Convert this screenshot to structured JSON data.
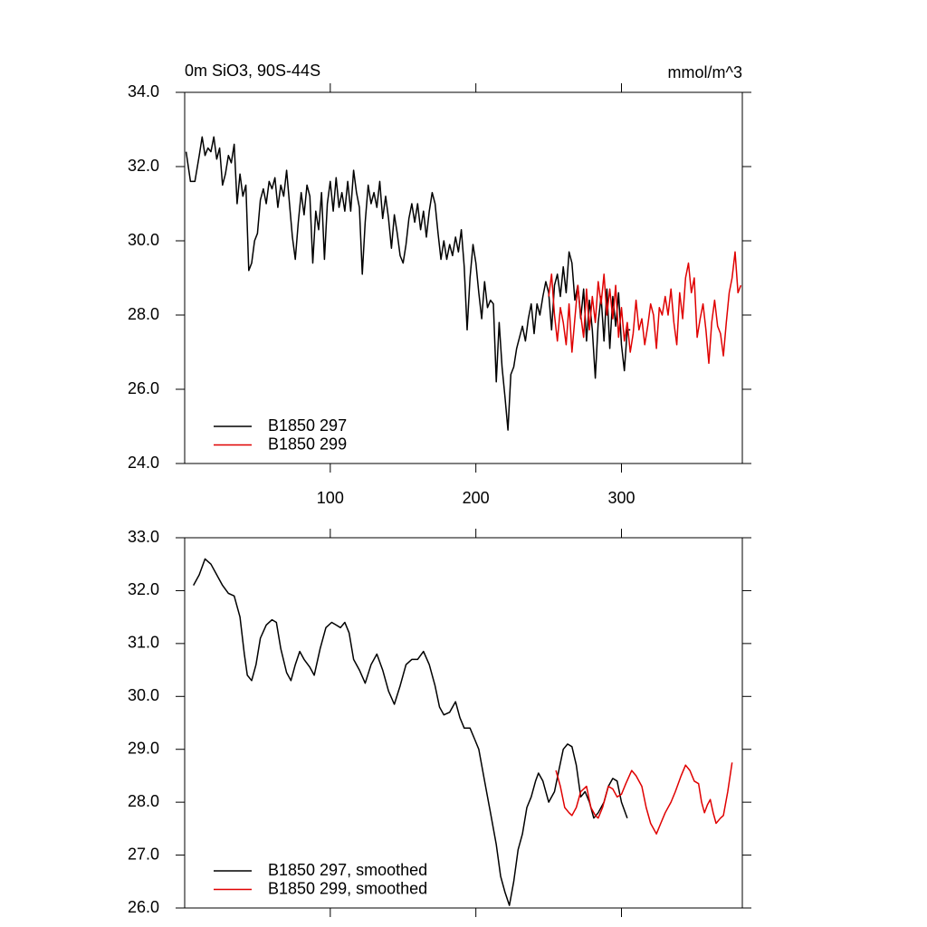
{
  "chart_data": [
    {
      "type": "line",
      "title": "0m SiO3, 90S-44S",
      "units": "mmol/m^3",
      "xlim": [
        0,
        383
      ],
      "xticks": [
        100,
        200,
        300
      ],
      "ylim": [
        24,
        34
      ],
      "yticks": [
        {
          "value": 24,
          "label": "24.0"
        },
        {
          "value": 26,
          "label": "26.0"
        },
        {
          "value": 28,
          "label": "28.0"
        },
        {
          "value": 30,
          "label": "30.0"
        },
        {
          "value": 32,
          "label": "32.0"
        },
        {
          "value": 34,
          "label": "34.0"
        }
      ],
      "legend": "lower left",
      "series": [
        {
          "name": "B1850 297",
          "color": "#000000",
          "x": [
            1,
            4,
            7,
            10,
            12,
            14,
            16,
            18,
            20,
            22,
            24,
            26,
            28,
            30,
            32,
            34,
            36,
            38,
            40,
            42,
            44,
            46,
            48,
            50,
            52,
            54,
            56,
            58,
            60,
            62,
            64,
            66,
            68,
            70,
            72,
            74,
            76,
            78,
            80,
            82,
            84,
            86,
            88,
            90,
            92,
            94,
            96,
            98,
            100,
            102,
            104,
            106,
            108,
            110,
            112,
            114,
            116,
            118,
            120,
            122,
            124,
            126,
            128,
            130,
            132,
            134,
            136,
            138,
            140,
            142,
            144,
            146,
            148,
            150,
            152,
            154,
            156,
            158,
            160,
            162,
            164,
            166,
            168,
            170,
            172,
            174,
            176,
            178,
            180,
            182,
            184,
            186,
            188,
            190,
            192,
            194,
            196,
            198,
            200,
            202,
            204,
            206,
            208,
            210,
            212,
            214,
            216,
            218,
            220,
            222,
            224,
            226,
            228,
            230,
            232,
            234,
            236,
            238,
            240,
            242,
            244,
            246,
            248,
            250,
            252,
            254,
            256,
            258,
            260,
            262,
            264,
            266,
            268,
            270,
            272,
            274,
            276,
            278,
            280,
            282,
            284,
            286,
            288,
            290,
            292,
            294,
            296,
            298,
            300,
            302,
            304,
            306
          ],
          "values": [
            32.4,
            31.6,
            31.6,
            32.3,
            32.8,
            32.3,
            32.5,
            32.4,
            32.8,
            32.2,
            32.5,
            31.5,
            31.8,
            32.3,
            32.1,
            32.6,
            31.0,
            31.8,
            31.2,
            31.5,
            29.2,
            29.4,
            30.0,
            30.2,
            31.1,
            31.4,
            31.0,
            31.6,
            31.4,
            31.7,
            30.9,
            31.5,
            31.2,
            31.9,
            31.0,
            30.1,
            29.5,
            30.5,
            31.3,
            30.7,
            31.5,
            31.2,
            29.4,
            30.8,
            30.3,
            31.3,
            29.5,
            31.0,
            31.6,
            30.8,
            31.7,
            30.9,
            31.3,
            30.8,
            31.6,
            30.8,
            31.9,
            31.3,
            30.9,
            29.1,
            30.5,
            31.5,
            31.0,
            31.3,
            30.9,
            31.6,
            30.6,
            31.2,
            30.6,
            29.8,
            30.7,
            30.2,
            29.6,
            29.4,
            29.9,
            30.6,
            31.0,
            30.5,
            31.0,
            30.3,
            30.8,
            30.1,
            30.8,
            31.3,
            31.0,
            30.2,
            29.5,
            30.0,
            29.5,
            29.9,
            29.6,
            30.1,
            29.7,
            30.3,
            29.3,
            27.6,
            29.0,
            29.9,
            29.4,
            28.6,
            27.9,
            28.9,
            28.2,
            28.4,
            28.3,
            26.2,
            27.8,
            26.6,
            25.8,
            24.9,
            26.4,
            26.6,
            27.1,
            27.4,
            27.7,
            27.3,
            27.9,
            28.3,
            27.5,
            28.3,
            28.0,
            28.5,
            28.9,
            28.6,
            27.6,
            28.8,
            29.1,
            28.5,
            29.3,
            28.6,
            29.7,
            29.4,
            28.4,
            28.8,
            27.9,
            28.7,
            27.3,
            28.4,
            27.6,
            26.3,
            27.8,
            28.5,
            27.3,
            28.7,
            27.1,
            28.5,
            27.7,
            28.6,
            27.2,
            26.5,
            27.6,
            27.6
          ]
        },
        {
          "name": "B1850 299",
          "color": "#e00000",
          "x": [
            250,
            252,
            254,
            256,
            258,
            260,
            262,
            264,
            266,
            268,
            270,
            272,
            274,
            276,
            278,
            280,
            282,
            284,
            286,
            288,
            290,
            292,
            294,
            296,
            298,
            300,
            302,
            304,
            306,
            308,
            310,
            312,
            314,
            316,
            318,
            320,
            322,
            324,
            326,
            328,
            330,
            332,
            334,
            336,
            338,
            340,
            342,
            344,
            346,
            348,
            350,
            352,
            354,
            356,
            358,
            360,
            362,
            364,
            366,
            368,
            370,
            372,
            374,
            376,
            378,
            380,
            382
          ],
          "values": [
            28.5,
            29.1,
            28.0,
            27.3,
            28.2,
            27.8,
            27.2,
            28.3,
            27.0,
            27.9,
            28.8,
            28.0,
            27.4,
            28.7,
            27.6,
            28.5,
            27.8,
            28.9,
            28.3,
            29.1,
            28.0,
            28.7,
            27.9,
            28.8,
            27.4,
            28.2,
            27.3,
            27.8,
            27.0,
            27.5,
            28.4,
            27.6,
            27.9,
            27.2,
            27.7,
            28.3,
            28.0,
            27.1,
            28.2,
            28.0,
            28.5,
            28.0,
            28.7,
            27.8,
            27.2,
            28.6,
            27.9,
            29.0,
            29.4,
            28.6,
            29.0,
            27.4,
            27.9,
            28.3,
            27.6,
            26.7,
            27.8,
            28.4,
            27.7,
            27.5,
            26.9,
            27.8,
            28.6,
            29.0,
            29.7,
            28.6,
            28.8
          ]
        }
      ]
    },
    {
      "type": "line",
      "xlim": [
        0,
        383
      ],
      "xticks": [
        100,
        200,
        300
      ],
      "ylim": [
        26,
        33
      ],
      "yticks": [
        {
          "value": 26,
          "label": "26.0"
        },
        {
          "value": 27,
          "label": "27.0"
        },
        {
          "value": 28,
          "label": "28.0"
        },
        {
          "value": 29,
          "label": "29.0"
        },
        {
          "value": 30,
          "label": "30.0"
        },
        {
          "value": 31,
          "label": "31.0"
        },
        {
          "value": 32,
          "label": "32.0"
        },
        {
          "value": 33,
          "label": "33.0"
        }
      ],
      "legend": "lower left",
      "series": [
        {
          "name": "B1850 297, smoothed",
          "color": "#000000",
          "x": [
            6,
            10,
            14,
            18,
            22,
            26,
            30,
            34,
            38,
            41,
            43,
            46,
            49,
            52,
            56,
            60,
            63,
            66,
            70,
            73,
            76,
            79,
            82,
            86,
            89,
            93,
            97,
            101,
            104,
            107,
            110,
            113,
            116,
            120,
            124,
            128,
            132,
            136,
            140,
            144,
            148,
            152,
            156,
            160,
            164,
            168,
            172,
            175,
            178,
            182,
            186,
            189,
            192,
            196,
            199,
            202,
            206,
            210,
            214,
            217,
            220,
            223,
            226,
            229,
            232,
            235,
            238,
            241,
            243,
            246,
            250,
            254,
            257,
            260,
            263,
            266,
            269,
            272,
            275,
            278,
            281,
            284,
            288,
            291,
            294,
            297,
            300,
            304
          ],
          "values": [
            32.1,
            32.3,
            32.6,
            32.5,
            32.3,
            32.1,
            31.95,
            31.9,
            31.5,
            30.8,
            30.4,
            30.3,
            30.6,
            31.1,
            31.35,
            31.45,
            31.4,
            30.9,
            30.45,
            30.3,
            30.6,
            30.85,
            30.7,
            30.55,
            30.4,
            30.9,
            31.3,
            31.4,
            31.35,
            31.3,
            31.4,
            31.2,
            30.7,
            30.5,
            30.25,
            30.6,
            30.8,
            30.5,
            30.1,
            29.85,
            30.2,
            30.6,
            30.7,
            30.7,
            30.85,
            30.6,
            30.2,
            29.8,
            29.65,
            29.7,
            29.9,
            29.6,
            29.4,
            29.4,
            29.2,
            29.0,
            28.4,
            27.8,
            27.2,
            26.6,
            26.3,
            26.05,
            26.5,
            27.1,
            27.4,
            27.9,
            28.1,
            28.4,
            28.55,
            28.4,
            28.0,
            28.2,
            28.6,
            29.0,
            29.1,
            29.05,
            28.7,
            28.1,
            28.2,
            28.0,
            27.7,
            27.8,
            28.0,
            28.3,
            28.45,
            28.4,
            28.0,
            27.7
          ]
        },
        {
          "name": "B1850 299, smoothed",
          "color": "#e00000",
          "x": [
            255,
            258,
            261,
            264,
            266,
            269,
            272,
            276,
            279,
            282,
            284,
            287,
            291,
            294,
            297,
            300,
            303,
            307,
            310,
            314,
            317,
            320,
            324,
            327,
            330,
            334,
            337,
            341,
            344,
            347,
            350,
            353,
            355,
            357,
            359,
            361,
            363,
            365,
            368,
            370,
            373,
            376
          ],
          "values": [
            28.6,
            28.3,
            27.9,
            27.8,
            27.75,
            27.9,
            28.2,
            28.3,
            27.9,
            27.75,
            27.7,
            27.9,
            28.3,
            28.25,
            28.1,
            28.15,
            28.35,
            28.6,
            28.5,
            28.3,
            27.9,
            27.6,
            27.4,
            27.6,
            27.8,
            28.0,
            28.2,
            28.5,
            28.7,
            28.6,
            28.4,
            28.35,
            28.0,
            27.8,
            27.95,
            28.05,
            27.8,
            27.6,
            27.7,
            27.75,
            28.2,
            28.75
          ]
        }
      ]
    }
  ]
}
